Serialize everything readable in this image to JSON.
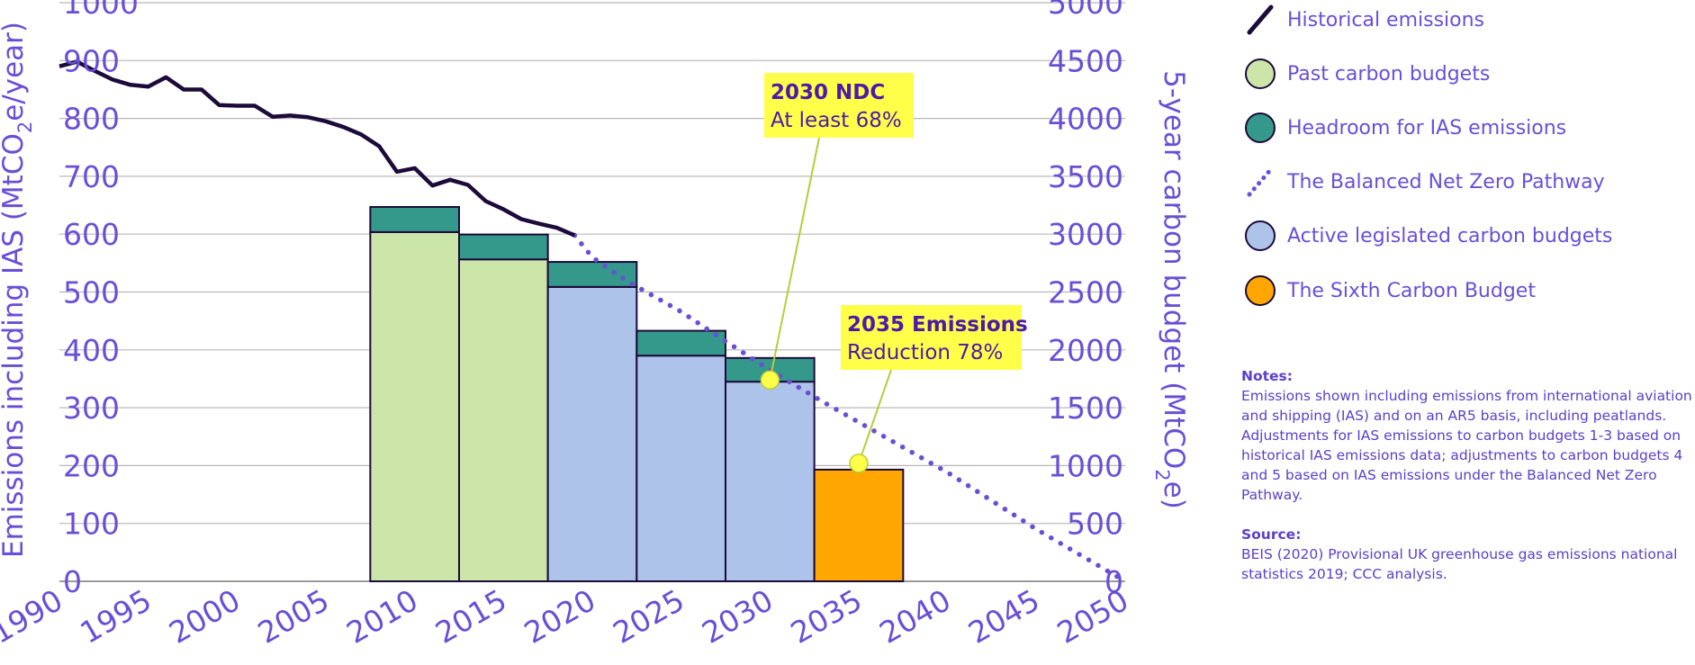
{
  "colors": {
    "axis_text": "#6a4fd6",
    "historical": "#1c0a3a",
    "past_budget": "#cce5a9",
    "headroom": "#34988a",
    "active_budget": "#aec3ea",
    "sixth_budget": "#ffa600",
    "pathway": "#6a4fd6",
    "callout_bg": "#ffff4a",
    "callout_line": "#b8cc3a",
    "marker": "#ffff4a",
    "gridline": "#b8b8b8"
  },
  "chart_data": {
    "type": "bar",
    "left_axis": {
      "label_parts": [
        "Emissions including IAS (MtCO",
        "2",
        "e/year)"
      ],
      "ticks": [
        0,
        100,
        200,
        300,
        400,
        500,
        600,
        700,
        800,
        900,
        1000
      ],
      "range": [
        0,
        1000
      ]
    },
    "right_axis": {
      "label_parts": [
        "5-year carbon budget (MtCO",
        "2",
        "e)"
      ],
      "ticks": [
        0,
        500,
        1000,
        1500,
        2000,
        2500,
        3000,
        3500,
        4000,
        4500,
        5000
      ],
      "range": [
        0,
        5000
      ]
    },
    "x_axis": {
      "ticks": [
        "1990",
        "1995",
        "2000",
        "2005",
        "2010",
        "2015",
        "2020",
        "2025",
        "2030",
        "2035",
        "2040",
        "2045",
        "2050"
      ],
      "range": [
        1990,
        2050
      ]
    },
    "grid": true,
    "legend_position": "right",
    "budgets": [
      {
        "start": 2008,
        "end": 2012,
        "kind": "past",
        "base": 3018,
        "headroom": 217
      },
      {
        "start": 2013,
        "end": 2017,
        "kind": "past",
        "base": 2782,
        "headroom": 215
      },
      {
        "start": 2018,
        "end": 2022,
        "kind": "active",
        "base": 2544,
        "headroom": 216
      },
      {
        "start": 2023,
        "end": 2027,
        "kind": "active",
        "base": 1950,
        "headroom": 215
      },
      {
        "start": 2028,
        "end": 2032,
        "kind": "active",
        "base": 1725,
        "headroom": 205
      },
      {
        "start": 2033,
        "end": 2037,
        "kind": "sixth",
        "base": 965,
        "headroom": 0
      }
    ],
    "historical_emissions": {
      "x": [
        1990,
        1991,
        1992,
        1993,
        1994,
        1995,
        1996,
        1997,
        1998,
        1999,
        2000,
        2001,
        2002,
        2003,
        2004,
        2005,
        2006,
        2007,
        2008,
        2009,
        2010,
        2011,
        2012,
        2013,
        2014,
        2015,
        2016,
        2017,
        2018,
        2019
      ],
      "y": [
        890,
        898,
        882,
        867,
        858,
        855,
        871,
        850,
        850,
        823,
        822,
        822,
        803,
        805,
        802,
        795,
        785,
        772,
        752,
        708,
        714,
        684,
        694,
        685,
        657,
        643,
        626,
        618,
        611,
        598
      ]
    },
    "balanced_pathway": {
      "x": [
        2019,
        2020,
        2022,
        2025,
        2027,
        2030,
        2033,
        2035,
        2040,
        2045,
        2050
      ],
      "y": [
        598,
        560,
        518,
        466,
        425,
        365,
        310,
        275,
        188,
        90,
        0
      ]
    },
    "annotations": [
      {
        "title": "2030 NDC",
        "text": "At least 68%",
        "x": 2030,
        "y": 348
      },
      {
        "title": "2035 Emissions",
        "text": "Reduction 78%",
        "x": 2035,
        "y": 204
      }
    ]
  },
  "legend": [
    {
      "icon": "historical-line-icon",
      "label": "Historical emissions"
    },
    {
      "icon": "past-budget-swatch-icon",
      "label": "Past carbon budgets"
    },
    {
      "icon": "headroom-swatch-icon",
      "label": "Headroom for IAS emissions"
    },
    {
      "icon": "pathway-dotted-icon",
      "label": "The Balanced Net Zero Pathway"
    },
    {
      "icon": "active-budget-swatch-icon",
      "label": "Active legislated carbon budgets"
    },
    {
      "icon": "sixth-budget-swatch-icon",
      "label": "The Sixth Carbon Budget"
    }
  ],
  "notes": {
    "notes_heading": "Notes:",
    "notes_text": "Emissions shown including emissions from international aviation and shipping (IAS) and on an AR5 basis, including peatlands. Adjustments for IAS emissions to carbon budgets 1-3 based on historical IAS emissions data; adjustments to carbon budgets 4 and 5 based on IAS emissions under the Balanced Net Zero Pathway.",
    "source_heading": "Source:",
    "source_text": "BEIS (2020) Provisional UK greenhouse gas emissions national statistics 2019; CCC analysis."
  }
}
